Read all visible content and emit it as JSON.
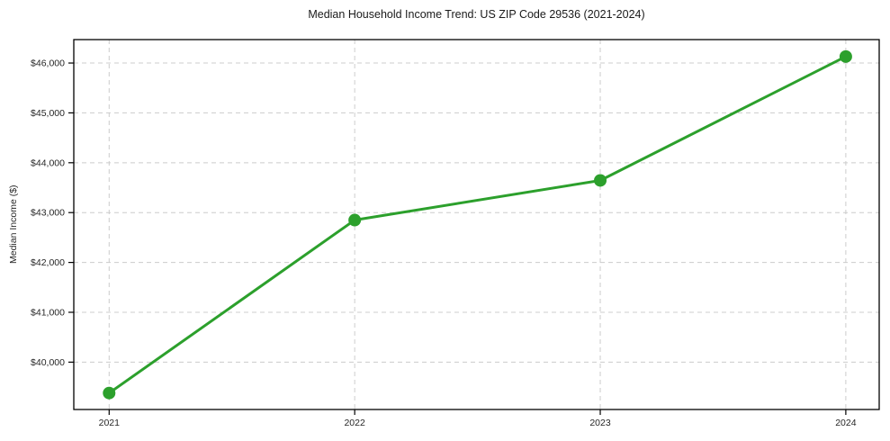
{
  "chart_data": {
    "type": "line",
    "title": "Median Household Income Trend: US ZIP Code 29536 (2021-2024)",
    "xlabel": "",
    "ylabel": "Median Income ($)",
    "x": [
      2021,
      2022,
      2023,
      2024
    ],
    "series": [
      {
        "name": "Median Household Income",
        "values": [
          39380,
          42850,
          43645,
          46130
        ],
        "color": "#2ca02c",
        "marker": "circle"
      }
    ],
    "xtick_labels": [
      "2021",
      "2022",
      "2023",
      "2024"
    ],
    "ytick_values": [
      40000,
      41000,
      42000,
      43000,
      44000,
      45000,
      46000
    ],
    "ytick_labels": [
      "$40,000",
      "$41,000",
      "$42,000",
      "$43,000",
      "$44,000",
      "$45,000",
      "$46,000"
    ],
    "xlim": [
      2020.856,
      2024.136
    ],
    "ylim": [
      39050,
      46470
    ],
    "grid": true,
    "grid_style": "dashed",
    "grid_color": "#cccccc",
    "legend": "none",
    "line_width": 3,
    "marker_radius": 7,
    "spine_color": "#000000",
    "tick_color": "#000000",
    "text_color": "#262626",
    "background_color": "#ffffff"
  }
}
